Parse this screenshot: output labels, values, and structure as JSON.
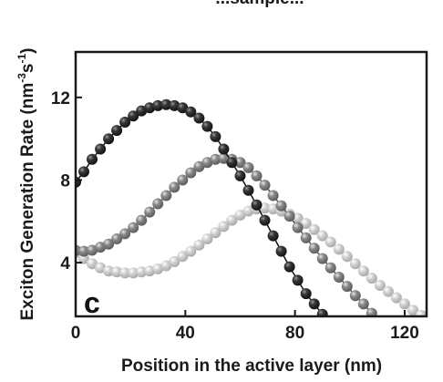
{
  "chart_data": {
    "type": "scatter",
    "title_partial": "...sample...",
    "xlabel": "Position in the active layer (nm)",
    "ylabel": "Exciton Generation Rate (nm",
    "ylabel_units": {
      "exp1": "-3",
      "mid": "s",
      "exp2": "-1",
      "close": ")"
    },
    "panel_label": "c",
    "xlim": [
      0,
      128
    ],
    "ylim": [
      1.4,
      14.2
    ],
    "xticks": [
      0,
      40,
      80,
      120
    ],
    "yticks": [
      4,
      8,
      12
    ],
    "series": [
      {
        "color": "#2b2b2b",
        "x": [
          0,
          3,
          6,
          9,
          12,
          15,
          18,
          21,
          24,
          27,
          30,
          33,
          36,
          39,
          42,
          45,
          48,
          51,
          54,
          57,
          60,
          63,
          66,
          69,
          72,
          75,
          78,
          81,
          84,
          87,
          90
        ],
        "y": [
          7.9,
          8.4,
          9.0,
          9.5,
          10.0,
          10.4,
          10.8,
          11.1,
          11.35,
          11.5,
          11.6,
          11.65,
          11.6,
          11.5,
          11.3,
          11.0,
          10.6,
          10.1,
          9.5,
          8.85,
          8.2,
          7.5,
          6.8,
          6.05,
          5.3,
          4.55,
          3.8,
          3.15,
          2.5,
          2.0,
          1.5
        ]
      },
      {
        "color": "#858585",
        "x": [
          0,
          3,
          6,
          9,
          12,
          15,
          18,
          21,
          24,
          27,
          30,
          33,
          36,
          39,
          42,
          45,
          48,
          51,
          54,
          57,
          60,
          63,
          66,
          69,
          72,
          75,
          78,
          81,
          84,
          87,
          90,
          93,
          96,
          99,
          102,
          105,
          108
        ],
        "y": [
          4.6,
          4.55,
          4.6,
          4.75,
          4.9,
          5.15,
          5.4,
          5.7,
          6.05,
          6.45,
          6.85,
          7.25,
          7.65,
          8.0,
          8.35,
          8.65,
          8.85,
          9.0,
          9.05,
          9.0,
          8.85,
          8.6,
          8.2,
          7.75,
          7.25,
          6.75,
          6.25,
          5.7,
          5.2,
          4.7,
          4.2,
          3.75,
          3.3,
          2.85,
          2.4,
          2.0,
          1.55
        ]
      },
      {
        "color": "#c8c8c8",
        "x": [
          0,
          3,
          6,
          9,
          12,
          15,
          18,
          21,
          24,
          27,
          30,
          33,
          36,
          39,
          42,
          45,
          48,
          51,
          54,
          57,
          60,
          63,
          66,
          69,
          72,
          75,
          78,
          81,
          84,
          87,
          90,
          93,
          96,
          99,
          102,
          105,
          108,
          111,
          114,
          117,
          120,
          123,
          126
        ],
        "y": [
          4.5,
          4.2,
          3.95,
          3.75,
          3.6,
          3.55,
          3.5,
          3.5,
          3.55,
          3.6,
          3.7,
          3.85,
          4.05,
          4.3,
          4.55,
          4.85,
          5.15,
          5.45,
          5.75,
          6.05,
          6.3,
          6.5,
          6.6,
          6.65,
          6.6,
          6.5,
          6.35,
          6.15,
          5.9,
          5.6,
          5.3,
          5.0,
          4.65,
          4.3,
          3.95,
          3.6,
          3.25,
          2.9,
          2.6,
          2.3,
          2.0,
          1.7,
          1.45
        ]
      }
    ]
  }
}
